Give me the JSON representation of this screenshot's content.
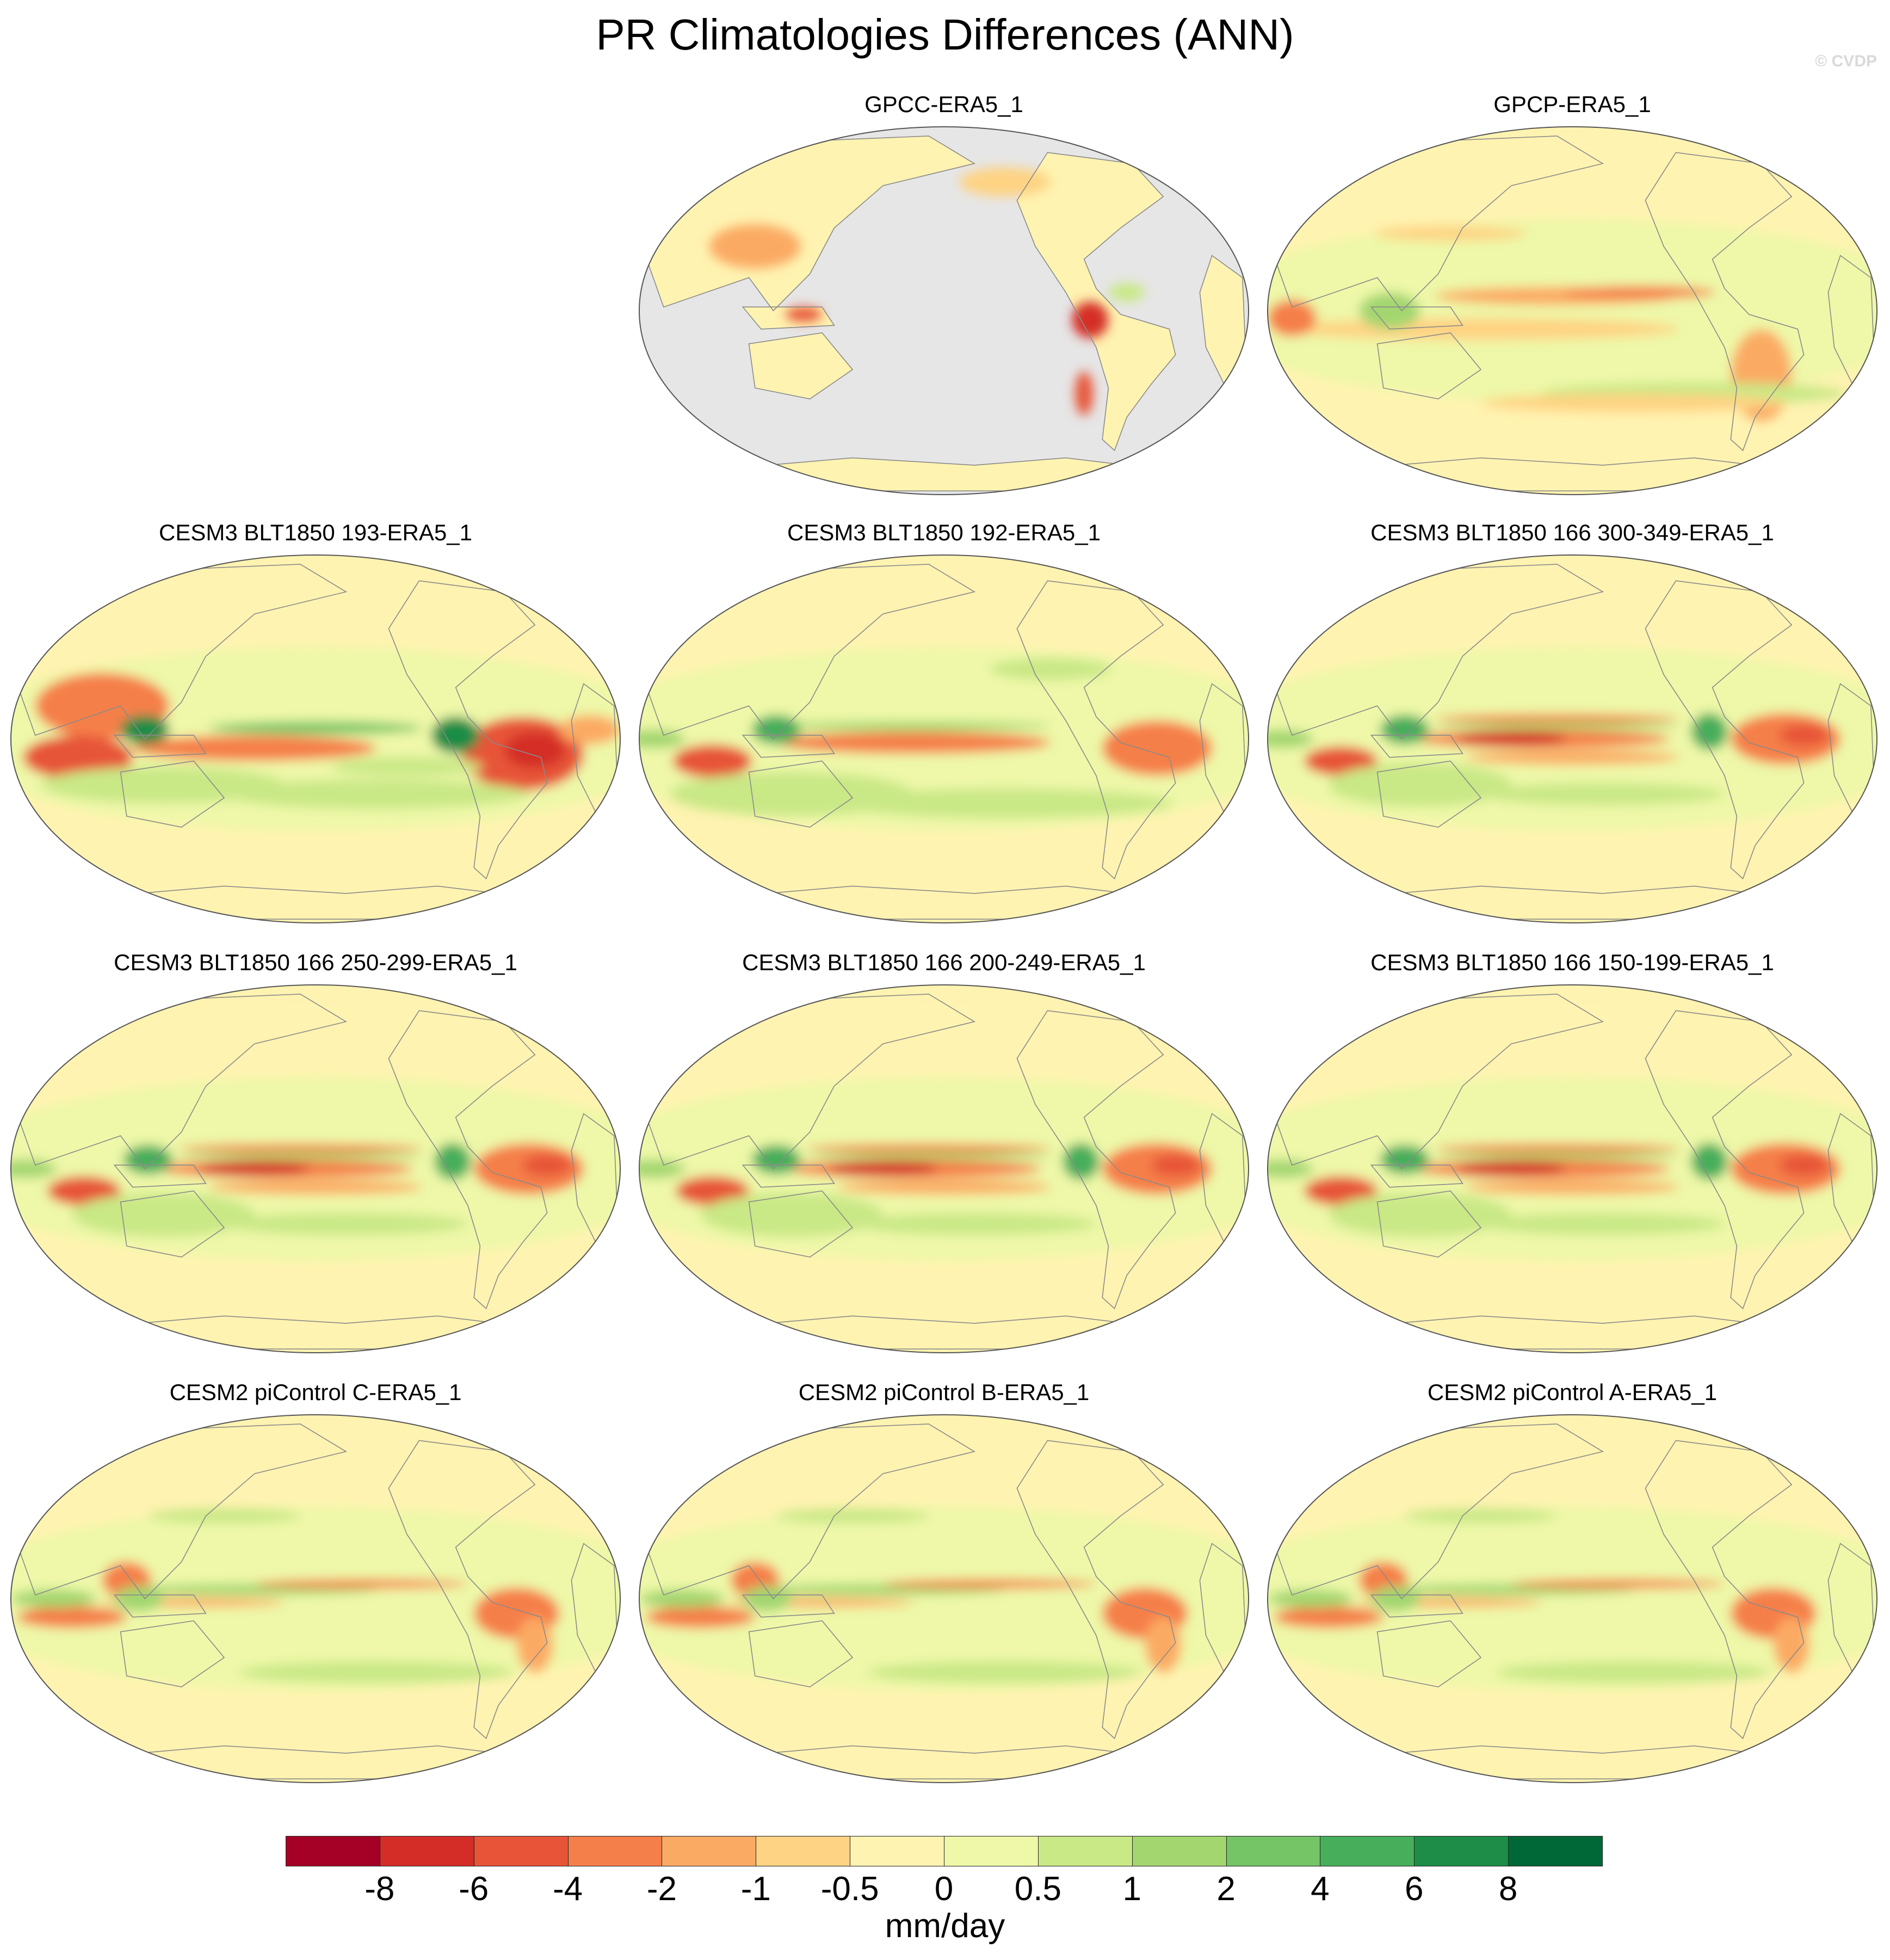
{
  "title": "PR Climatologies Differences (ANN)",
  "watermark": "© CVDP",
  "panels": [
    {
      "label": "GPCC-ERA5_1",
      "ocean_masked": true,
      "pattern": "obs-land"
    },
    {
      "label": "GPCP-ERA5_1",
      "ocean_masked": false,
      "pattern": "obs-global"
    },
    {
      "label": "CESM3 BLT1850 193-ERA5_1",
      "ocean_masked": false,
      "pattern": "cesm3-strong"
    },
    {
      "label": "CESM3 BLT1850 192-ERA5_1",
      "ocean_masked": false,
      "pattern": "cesm3"
    },
    {
      "label": "CESM3 BLT1850 166 300-349-ERA5_1",
      "ocean_masked": false,
      "pattern": "cesm3-166"
    },
    {
      "label": "CESM3 BLT1850 166 250-299-ERA5_1",
      "ocean_masked": false,
      "pattern": "cesm3-166"
    },
    {
      "label": "CESM3 BLT1850 166 200-249-ERA5_1",
      "ocean_masked": false,
      "pattern": "cesm3-166"
    },
    {
      "label": "CESM3 BLT1850 166 150-199-ERA5_1",
      "ocean_masked": false,
      "pattern": "cesm3-166"
    },
    {
      "label": "CESM2 piControl C-ERA5_1",
      "ocean_masked": false,
      "pattern": "cesm2"
    },
    {
      "label": "CESM2 piControl B-ERA5_1",
      "ocean_masked": false,
      "pattern": "cesm2"
    },
    {
      "label": "CESM2 piControl A-ERA5_1",
      "ocean_masked": false,
      "pattern": "cesm2"
    }
  ],
  "colorbar": {
    "units": "mm/day",
    "colors": [
      "#a50026",
      "#d42d27",
      "#e75438",
      "#f57f4a",
      "#fbaa64",
      "#fed383",
      "#fff3b1",
      "#eef8a8",
      "#c9e886",
      "#a3d66f",
      "#75c465",
      "#47ae5b",
      "#1d8d47",
      "#006837"
    ],
    "tick_labels": [
      "-8",
      "-6",
      "-4",
      "-2",
      "-1",
      "-0.5",
      "0",
      "0.5",
      "1",
      "2",
      "4",
      "6",
      "8"
    ]
  }
}
